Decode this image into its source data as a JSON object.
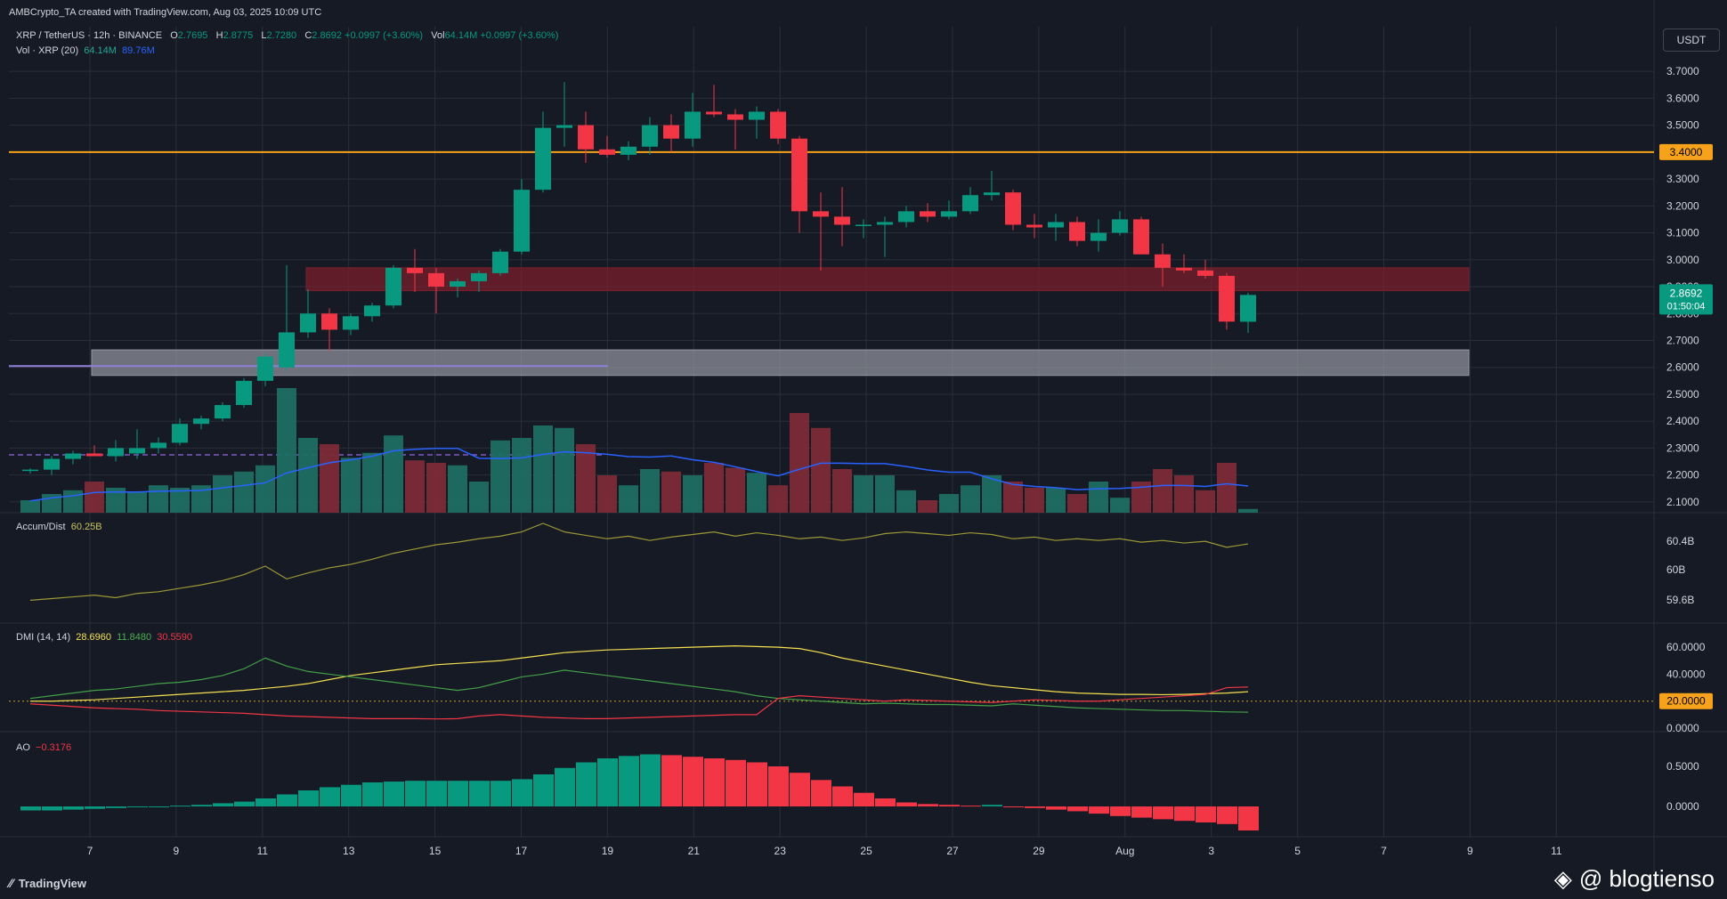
{
  "header": {
    "attribution": "AMBCrypto_TA created with TradingView.com, Aug 03, 2025 10:09 UTC",
    "symbol": "XRP / TetherUS · 12h · BINANCE",
    "o_label": "O",
    "o_val": "2.7695",
    "h_label": "H",
    "h_val": "2.8775",
    "l_label": "L",
    "l_val": "2.7280",
    "c_label": "C",
    "c_val": "2.8692",
    "chg": "+0.0997 (+3.60%)",
    "vol_label": "Vol",
    "vol_val": "64.14M",
    "vol_chg": "+0.0997 (+3.60%)",
    "vol_line": "Vol · XRP (20)",
    "vol_a": "64.14M",
    "vol_b": "89.76M"
  },
  "currency_button": "USDT",
  "panes": {
    "ad_label": "Accum/Dist",
    "ad_val": "60.25B",
    "dmi_label": "DMI (14, 14)",
    "dmi_a": "28.6960",
    "dmi_b": "11.8480",
    "dmi_c": "30.5590",
    "ao_label": "AO",
    "ao_val": "−0.3176"
  },
  "footer": {
    "tv_brand": "TradingView",
    "watermark": "@ blogtienso"
  },
  "colors": {
    "bg": "#161a25",
    "up": "#089981",
    "down": "#f23645",
    "grid": "#2a2e39",
    "ao_up": "#089981",
    "ao_down": "#f23645",
    "level": "#f7a21b",
    "vol_ma": "#2962ff"
  },
  "chart_data": {
    "type": "candlestick",
    "x_tick_labels": [
      "7",
      "9",
      "11",
      "13",
      "15",
      "17",
      "19",
      "21",
      "23",
      "25",
      "27",
      "29",
      "Aug",
      "3",
      "5",
      "7",
      "9",
      "11"
    ],
    "price_axis": [
      "3.7000",
      "3.6000",
      "3.5000",
      "3.4000",
      "3.3000",
      "3.2000",
      "3.1000",
      "3.0000",
      "2.9000",
      "2.8000",
      "2.7000",
      "2.6000",
      "2.5000",
      "2.4000",
      "2.3000",
      "2.2000",
      "2.1000"
    ],
    "price_ylim": [
      2.06,
      3.76
    ],
    "levels": {
      "orange_line": "3.4000",
      "last_price": "2.8692",
      "countdown": "01:50:04"
    },
    "zones": [
      {
        "name": "resistance",
        "from": 2.885,
        "to": 2.97,
        "color": "#7a1f2b"
      },
      {
        "name": "support",
        "from": 2.57,
        "to": 2.665,
        "color": "#9598a1"
      }
    ],
    "candles": [
      [
        2.215,
        2.225,
        2.205,
        2.22
      ],
      [
        2.22,
        2.27,
        2.2,
        2.26
      ],
      [
        2.26,
        2.29,
        2.24,
        2.28
      ],
      [
        2.28,
        2.31,
        2.27,
        2.27
      ],
      [
        2.27,
        2.33,
        2.25,
        2.3
      ],
      [
        2.28,
        2.37,
        2.26,
        2.3
      ],
      [
        2.3,
        2.34,
        2.28,
        2.32
      ],
      [
        2.32,
        2.41,
        2.31,
        2.39
      ],
      [
        2.39,
        2.42,
        2.37,
        2.41
      ],
      [
        2.41,
        2.47,
        2.4,
        2.46
      ],
      [
        2.46,
        2.56,
        2.45,
        2.55
      ],
      [
        2.55,
        2.65,
        2.53,
        2.64
      ],
      [
        2.6,
        2.98,
        2.59,
        2.73
      ],
      [
        2.73,
        2.89,
        2.71,
        2.8
      ],
      [
        2.8,
        2.82,
        2.66,
        2.74
      ],
      [
        2.74,
        2.8,
        2.72,
        2.79
      ],
      [
        2.79,
        2.84,
        2.77,
        2.83
      ],
      [
        2.83,
        2.98,
        2.82,
        2.97
      ],
      [
        2.97,
        3.04,
        2.88,
        2.95
      ],
      [
        2.95,
        2.97,
        2.8,
        2.9
      ],
      [
        2.9,
        2.93,
        2.86,
        2.92
      ],
      [
        2.92,
        2.96,
        2.88,
        2.95
      ],
      [
        2.95,
        3.04,
        2.94,
        3.03
      ],
      [
        3.03,
        3.3,
        3.02,
        3.26
      ],
      [
        3.26,
        3.55,
        3.25,
        3.49
      ],
      [
        3.49,
        3.66,
        3.42,
        3.5
      ],
      [
        3.5,
        3.55,
        3.36,
        3.41
      ],
      [
        3.41,
        3.46,
        3.38,
        3.39
      ],
      [
        3.39,
        3.44,
        3.37,
        3.42
      ],
      [
        3.42,
        3.53,
        3.39,
        3.5
      ],
      [
        3.5,
        3.54,
        3.4,
        3.45
      ],
      [
        3.45,
        3.62,
        3.42,
        3.55
      ],
      [
        3.55,
        3.65,
        3.53,
        3.54
      ],
      [
        3.54,
        3.56,
        3.41,
        3.52
      ],
      [
        3.52,
        3.57,
        3.45,
        3.55
      ],
      [
        3.55,
        3.56,
        3.43,
        3.45
      ],
      [
        3.45,
        3.46,
        3.1,
        3.18
      ],
      [
        3.18,
        3.25,
        2.96,
        3.16
      ],
      [
        3.16,
        3.27,
        3.05,
        3.13
      ],
      [
        3.13,
        3.15,
        3.08,
        3.13
      ],
      [
        3.13,
        3.16,
        3.01,
        3.14
      ],
      [
        3.14,
        3.2,
        3.12,
        3.18
      ],
      [
        3.18,
        3.21,
        3.14,
        3.16
      ],
      [
        3.16,
        3.22,
        3.15,
        3.18
      ],
      [
        3.18,
        3.27,
        3.17,
        3.24
      ],
      [
        3.24,
        3.33,
        3.22,
        3.25
      ],
      [
        3.25,
        3.26,
        3.11,
        3.13
      ],
      [
        3.13,
        3.17,
        3.08,
        3.12
      ],
      [
        3.12,
        3.17,
        3.07,
        3.14
      ],
      [
        3.14,
        3.16,
        3.05,
        3.07
      ],
      [
        3.07,
        3.15,
        3.03,
        3.1
      ],
      [
        3.1,
        3.18,
        3.09,
        3.15
      ],
      [
        3.15,
        3.16,
        3.02,
        3.02
      ],
      [
        3.02,
        3.06,
        2.9,
        2.97
      ],
      [
        2.97,
        3.02,
        2.95,
        2.96
      ],
      [
        2.96,
        3.0,
        2.93,
        2.94
      ],
      [
        2.94,
        2.95,
        2.74,
        2.77
      ],
      [
        2.7695,
        2.8775,
        2.728,
        2.8692
      ]
    ],
    "volume": [
      0.1,
      0.15,
      0.18,
      0.25,
      0.2,
      0.17,
      0.22,
      0.2,
      0.22,
      0.3,
      0.33,
      0.38,
      1.0,
      0.6,
      0.55,
      0.44,
      0.48,
      0.62,
      0.42,
      0.4,
      0.38,
      0.25,
      0.58,
      0.6,
      0.7,
      0.68,
      0.55,
      0.3,
      0.22,
      0.35,
      0.33,
      0.3,
      0.4,
      0.36,
      0.32,
      0.22,
      0.8,
      0.68,
      0.35,
      0.3,
      0.3,
      0.18,
      0.1,
      0.15,
      0.22,
      0.3,
      0.25,
      0.2,
      0.2,
      0.15,
      0.25,
      0.12,
      0.25,
      0.35,
      0.3,
      0.18,
      0.4,
      0.03
    ],
    "accum_dist": {
      "axis": [
        "60.4B",
        "60B",
        "59.6B"
      ]
    },
    "dmi": {
      "axis": [
        "60.0000",
        "40.0000",
        "20.0000",
        "0.0000"
      ]
    },
    "ao": {
      "axis": [
        "0.5000",
        "0.0000"
      ]
    }
  }
}
